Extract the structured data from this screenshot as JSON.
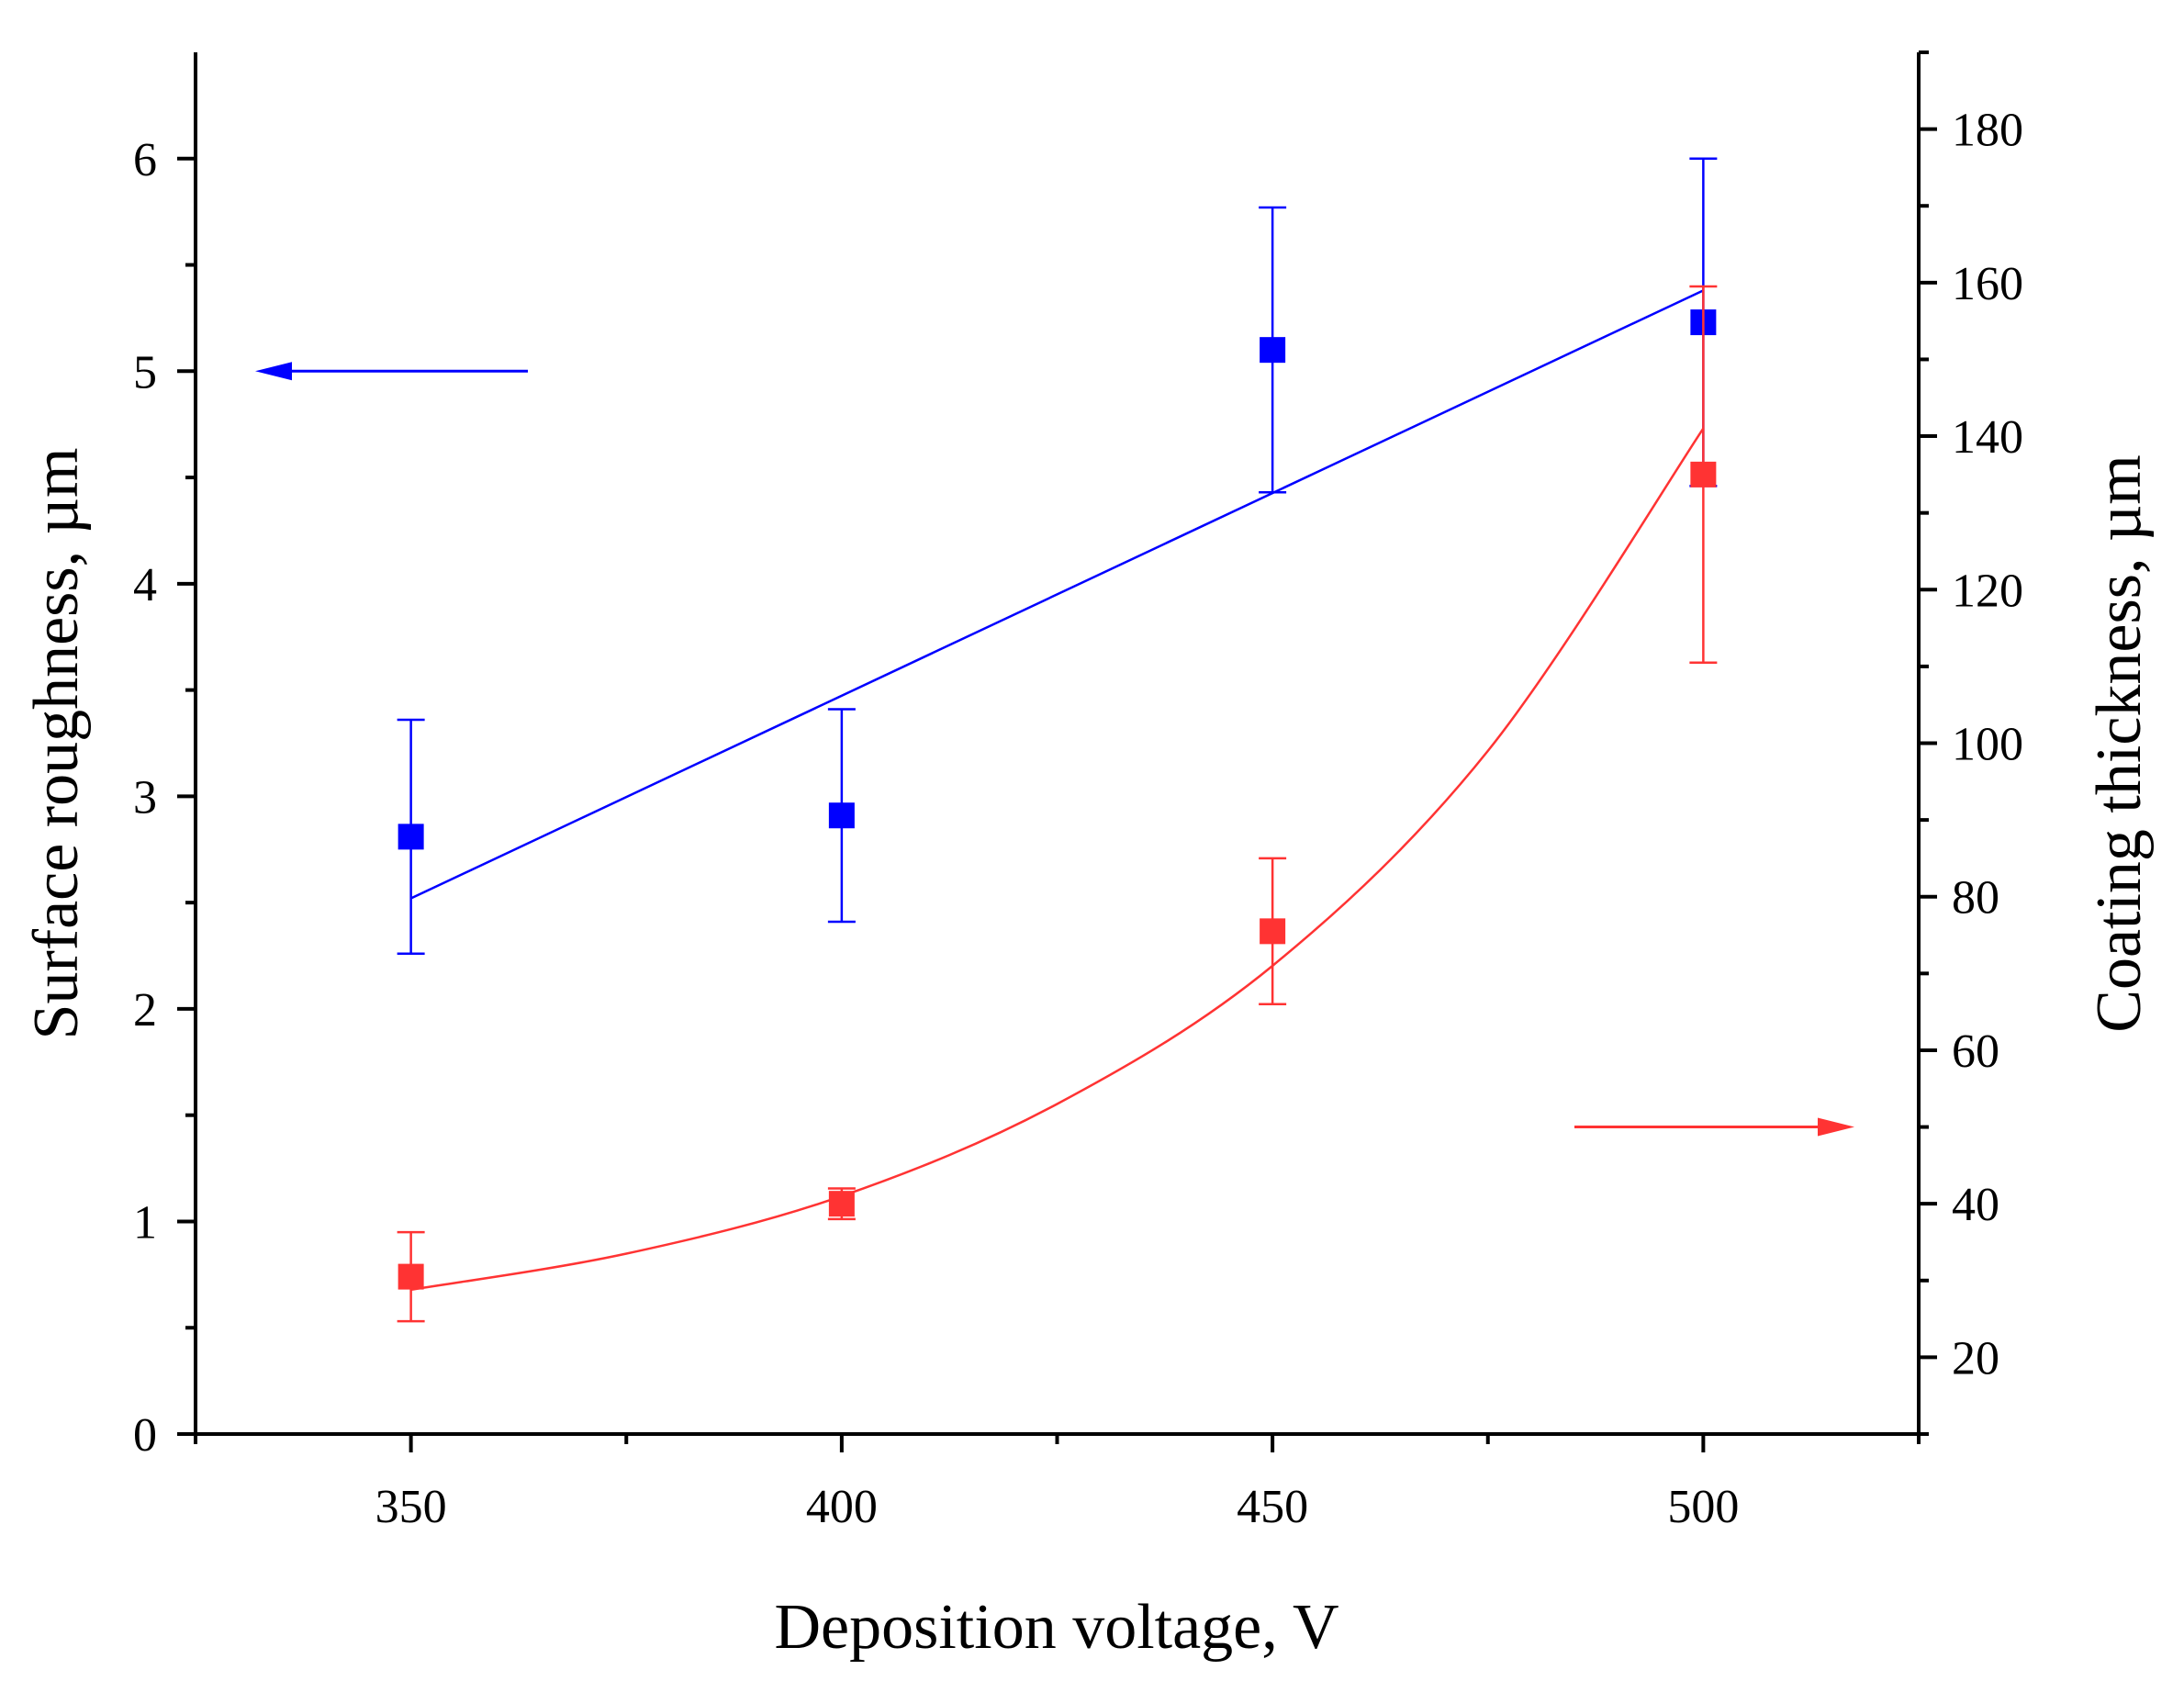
{
  "chart_data": {
    "type": "scatter",
    "xlabel": "Deposition voltage, V",
    "ylabel_left": "Surface roughness, µm",
    "ylabel_right": "Coating thickness, µm",
    "xlim": [
      325,
      525
    ],
    "ylim_left": [
      0,
      6.5
    ],
    "ylim_right": [
      10,
      190
    ],
    "x_ticks": [
      350,
      400,
      450,
      500
    ],
    "x_tick_labels": [
      "350",
      "400",
      "450",
      "500"
    ],
    "y_left_ticks": [
      0,
      1,
      2,
      3,
      4,
      5,
      6
    ],
    "y_left_tick_labels": [
      "0",
      "1",
      "2",
      "3",
      "4",
      "5",
      "6"
    ],
    "y_right_ticks": [
      20,
      40,
      60,
      80,
      100,
      120,
      140,
      160,
      180
    ],
    "y_right_tick_labels": [
      "20",
      "40",
      "60",
      "80",
      "100",
      "120",
      "140",
      "160",
      "180"
    ],
    "grid": false,
    "series": [
      {
        "name": "Surface roughness",
        "axis": "left",
        "color": "#0000ff",
        "x": [
          350,
          400,
          450,
          500
        ],
        "y": [
          2.81,
          2.91,
          5.1,
          5.23
        ],
        "yerr": [
          0.55,
          0.5,
          0.67,
          0.77
        ],
        "fit": {
          "type": "linear",
          "x": [
            350,
            500
          ],
          "y": [
            2.52,
            5.38
          ]
        },
        "arrow_direction": "left"
      },
      {
        "name": "Coating thickness",
        "axis": "right",
        "color": "#ff3333",
        "x": [
          350,
          400,
          450,
          500
        ],
        "y": [
          30.5,
          40.0,
          75.5,
          135.0
        ],
        "yerr": [
          5.8,
          2.0,
          9.5,
          24.5
        ],
        "fit": {
          "type": "exponential",
          "x": [
            350,
            375,
            400,
            425,
            450,
            475,
            500
          ],
          "y": [
            28.8,
            33.5,
            41.0,
            53.0,
            71.0,
            99.0,
            141.0
          ]
        },
        "arrow_direction": "right"
      }
    ]
  }
}
